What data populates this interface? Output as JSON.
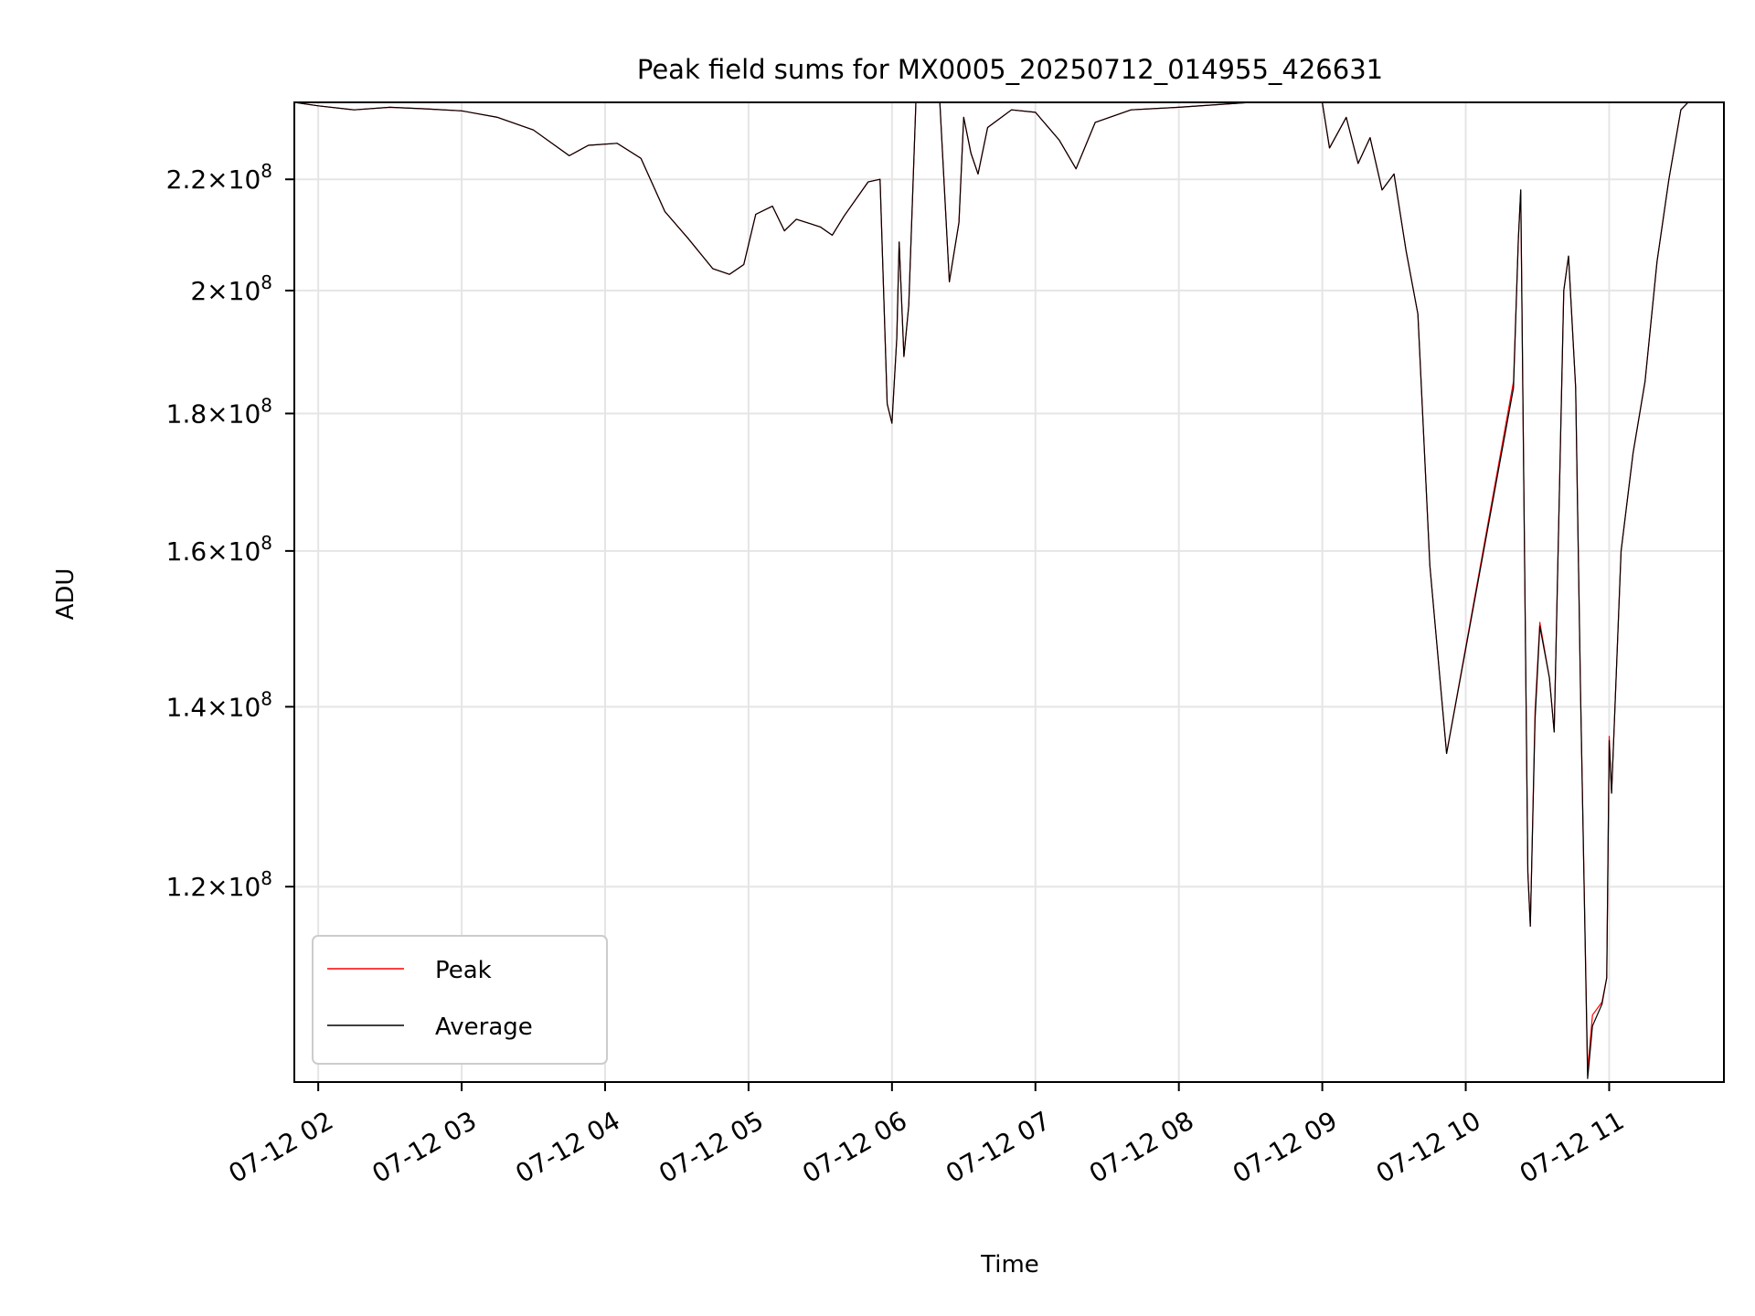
{
  "chart_data": {
    "type": "line",
    "title": "Peak field sums for MX0005_20250712_014955_426631",
    "xlabel": "Time",
    "ylabel": "ADU",
    "y_scale": "log",
    "ylim": [
      101500000,
      235000000
    ],
    "xlim": [
      "2025-07-12 01:50",
      "2025-07-12 11:48"
    ],
    "grid": true,
    "legend": "lower-left",
    "x_ticks": [
      {
        "t": "2025-07-12 02:00",
        "label": "07-12 02"
      },
      {
        "t": "2025-07-12 03:00",
        "label": "07-12 03"
      },
      {
        "t": "2025-07-12 04:00",
        "label": "07-12 04"
      },
      {
        "t": "2025-07-12 05:00",
        "label": "07-12 05"
      },
      {
        "t": "2025-07-12 06:00",
        "label": "07-12 06"
      },
      {
        "t": "2025-07-12 07:00",
        "label": "07-12 07"
      },
      {
        "t": "2025-07-12 08:00",
        "label": "07-12 08"
      },
      {
        "t": "2025-07-12 09:00",
        "label": "07-12 09"
      },
      {
        "t": "2025-07-12 10:00",
        "label": "07-12 10"
      },
      {
        "t": "2025-07-12 11:00",
        "label": "07-12 11"
      }
    ],
    "y_ticks": [
      {
        "v": 120000000,
        "mant": "1.2",
        "exp": "8"
      },
      {
        "v": 140000000,
        "mant": "1.4",
        "exp": "8"
      },
      {
        "v": 160000000,
        "mant": "1.6",
        "exp": "8"
      },
      {
        "v": 180000000,
        "mant": "1.8",
        "exp": "8"
      },
      {
        "v": 200000000,
        "mant": "2",
        "exp": "8"
      },
      {
        "v": 220000000,
        "mant": "2.2",
        "exp": "8"
      }
    ],
    "tick_times_label_sep": "×10",
    "series": [
      {
        "name": "Peak",
        "color": "#ff0000",
        "linewidth": 1.2,
        "points": [
          [
            "2025-07-12 01:50",
            235000000
          ],
          [
            "2025-07-12 02:00",
            234300000
          ],
          [
            "2025-07-12 02:15",
            233500000
          ],
          [
            "2025-07-12 02:30",
            234000000
          ],
          [
            "2025-07-12 02:45",
            233700000
          ],
          [
            "2025-07-12 03:00",
            233300000
          ],
          [
            "2025-07-12 03:15",
            232000000
          ],
          [
            "2025-07-12 03:30",
            229500000
          ],
          [
            "2025-07-12 03:45",
            224500000
          ],
          [
            "2025-07-12 03:53",
            226500000
          ],
          [
            "2025-07-12 04:05",
            226900000
          ],
          [
            "2025-07-12 04:15",
            224000000
          ],
          [
            "2025-07-12 04:25",
            214000000
          ],
          [
            "2025-07-12 04:35",
            209000000
          ],
          [
            "2025-07-12 04:45",
            203800000
          ],
          [
            "2025-07-12 04:52",
            202800000
          ],
          [
            "2025-07-12 04:58",
            204500000
          ],
          [
            "2025-07-12 05:03",
            213500000
          ],
          [
            "2025-07-12 05:10",
            215000000
          ],
          [
            "2025-07-12 05:15",
            210500000
          ],
          [
            "2025-07-12 05:20",
            212600000
          ],
          [
            "2025-07-12 05:30",
            211200000
          ],
          [
            "2025-07-12 05:35",
            209700000
          ],
          [
            "2025-07-12 05:40",
            213200000
          ],
          [
            "2025-07-12 05:50",
            219500000
          ],
          [
            "2025-07-12 05:55",
            220000000
          ],
          [
            "2025-07-12 05:58",
            181500000
          ],
          [
            "2025-07-12 06:00",
            178500000
          ],
          [
            "2025-07-12 06:02",
            192000000
          ],
          [
            "2025-07-12 06:03",
            208500000
          ],
          [
            "2025-07-12 06:05",
            189000000
          ],
          [
            "2025-07-12 06:07",
            197500000
          ],
          [
            "2025-07-12 06:10",
            235000000
          ],
          [
            "2025-07-12 06:20",
            235000000
          ],
          [
            "2025-07-12 06:24",
            201500000
          ],
          [
            "2025-07-12 06:28",
            212000000
          ],
          [
            "2025-07-12 06:30",
            232000000
          ],
          [
            "2025-07-12 06:33",
            225000000
          ],
          [
            "2025-07-12 06:36",
            221000000
          ],
          [
            "2025-07-12 06:40",
            230000000
          ],
          [
            "2025-07-12 06:50",
            233500000
          ],
          [
            "2025-07-12 07:00",
            233000000
          ],
          [
            "2025-07-12 07:10",
            227500000
          ],
          [
            "2025-07-12 07:17",
            222000000
          ],
          [
            "2025-07-12 07:25",
            231000000
          ],
          [
            "2025-07-12 07:40",
            233500000
          ],
          [
            "2025-07-12 08:00",
            234000000
          ],
          [
            "2025-07-12 08:30",
            235000000
          ],
          [
            "2025-07-12 09:00",
            235000000
          ],
          [
            "2025-07-12 09:03",
            226000000
          ],
          [
            "2025-07-12 09:10",
            232000000
          ],
          [
            "2025-07-12 09:15",
            223000000
          ],
          [
            "2025-07-12 09:20",
            228000000
          ],
          [
            "2025-07-12 09:25",
            218000000
          ],
          [
            "2025-07-12 09:30",
            221000000
          ],
          [
            "2025-07-12 09:35",
            207000000
          ],
          [
            "2025-07-12 09:40",
            196000000
          ],
          [
            "2025-07-12 09:45",
            158000000
          ],
          [
            "2025-07-12 09:52",
            134500000
          ],
          [
            "2025-07-12 10:20",
            185000000
          ],
          [
            "2025-07-12 10:22",
            209000000
          ],
          [
            "2025-07-12 10:23",
            218000000
          ],
          [
            "2025-07-12 10:26",
            121500000
          ],
          [
            "2025-07-12 10:27",
            116000000
          ],
          [
            "2025-07-12 10:29",
            139500000
          ],
          [
            "2025-07-12 10:31",
            150500000
          ],
          [
            "2025-07-12 10:35",
            143500000
          ],
          [
            "2025-07-12 10:37",
            137000000
          ],
          [
            "2025-07-12 10:41",
            200000000
          ],
          [
            "2025-07-12 10:43",
            206000000
          ],
          [
            "2025-07-12 10:46",
            184000000
          ],
          [
            "2025-07-12 10:48",
            142000000
          ],
          [
            "2025-07-12 10:51",
            102500000
          ],
          [
            "2025-07-12 10:53",
            107500000
          ],
          [
            "2025-07-12 10:57",
            108700000
          ],
          [
            "2025-07-12 10:59",
            111000000
          ],
          [
            "2025-07-12 11:00",
            136500000
          ],
          [
            "2025-07-12 11:01",
            130000000
          ],
          [
            "2025-07-12 11:05",
            160000000
          ],
          [
            "2025-07-12 11:10",
            174000000
          ],
          [
            "2025-07-12 11:15",
            185000000
          ],
          [
            "2025-07-12 11:20",
            205000000
          ],
          [
            "2025-07-12 11:25",
            220000000
          ],
          [
            "2025-07-12 11:30",
            233500000
          ],
          [
            "2025-07-12 11:33",
            235000000
          ]
        ]
      },
      {
        "name": "Average",
        "color": "#000000",
        "linewidth": 1.2,
        "points": [
          [
            "2025-07-12 01:50",
            235000000
          ],
          [
            "2025-07-12 02:00",
            234300000
          ],
          [
            "2025-07-12 02:15",
            233500000
          ],
          [
            "2025-07-12 02:30",
            234000000
          ],
          [
            "2025-07-12 02:45",
            233700000
          ],
          [
            "2025-07-12 03:00",
            233300000
          ],
          [
            "2025-07-12 03:15",
            232000000
          ],
          [
            "2025-07-12 03:30",
            229500000
          ],
          [
            "2025-07-12 03:45",
            224500000
          ],
          [
            "2025-07-12 03:53",
            226500000
          ],
          [
            "2025-07-12 04:05",
            226900000
          ],
          [
            "2025-07-12 04:15",
            224000000
          ],
          [
            "2025-07-12 04:25",
            214000000
          ],
          [
            "2025-07-12 04:35",
            209000000
          ],
          [
            "2025-07-12 04:45",
            203800000
          ],
          [
            "2025-07-12 04:52",
            202800000
          ],
          [
            "2025-07-12 04:58",
            204500000
          ],
          [
            "2025-07-12 05:03",
            213500000
          ],
          [
            "2025-07-12 05:10",
            215000000
          ],
          [
            "2025-07-12 05:15",
            210500000
          ],
          [
            "2025-07-12 05:20",
            212600000
          ],
          [
            "2025-07-12 05:30",
            211200000
          ],
          [
            "2025-07-12 05:35",
            209700000
          ],
          [
            "2025-07-12 05:40",
            213200000
          ],
          [
            "2025-07-12 05:50",
            219500000
          ],
          [
            "2025-07-12 05:55",
            220000000
          ],
          [
            "2025-07-12 05:58",
            181500000
          ],
          [
            "2025-07-12 06:00",
            178500000
          ],
          [
            "2025-07-12 06:02",
            192000000
          ],
          [
            "2025-07-12 06:03",
            208500000
          ],
          [
            "2025-07-12 06:05",
            189000000
          ],
          [
            "2025-07-12 06:07",
            197500000
          ],
          [
            "2025-07-12 06:10",
            235000000
          ],
          [
            "2025-07-12 06:20",
            235000000
          ],
          [
            "2025-07-12 06:24",
            201500000
          ],
          [
            "2025-07-12 06:28",
            212000000
          ],
          [
            "2025-07-12 06:30",
            232000000
          ],
          [
            "2025-07-12 06:33",
            225000000
          ],
          [
            "2025-07-12 06:36",
            221000000
          ],
          [
            "2025-07-12 06:40",
            230000000
          ],
          [
            "2025-07-12 06:50",
            233500000
          ],
          [
            "2025-07-12 07:00",
            233000000
          ],
          [
            "2025-07-12 07:10",
            227500000
          ],
          [
            "2025-07-12 07:17",
            222000000
          ],
          [
            "2025-07-12 07:25",
            231000000
          ],
          [
            "2025-07-12 07:40",
            233500000
          ],
          [
            "2025-07-12 08:00",
            234000000
          ],
          [
            "2025-07-12 08:30",
            235000000
          ],
          [
            "2025-07-12 09:00",
            235000000
          ],
          [
            "2025-07-12 09:03",
            226000000
          ],
          [
            "2025-07-12 09:10",
            232000000
          ],
          [
            "2025-07-12 09:15",
            223000000
          ],
          [
            "2025-07-12 09:20",
            228000000
          ],
          [
            "2025-07-12 09:25",
            218000000
          ],
          [
            "2025-07-12 09:30",
            221000000
          ],
          [
            "2025-07-12 09:35",
            207000000
          ],
          [
            "2025-07-12 09:40",
            196000000
          ],
          [
            "2025-07-12 09:45",
            158000000
          ],
          [
            "2025-07-12 09:52",
            134500000
          ],
          [
            "2025-07-12 10:20",
            184000000
          ],
          [
            "2025-07-12 10:22",
            209000000
          ],
          [
            "2025-07-12 10:23",
            218000000
          ],
          [
            "2025-07-12 10:26",
            121500000
          ],
          [
            "2025-07-12 10:27",
            116000000
          ],
          [
            "2025-07-12 10:29",
            138500000
          ],
          [
            "2025-07-12 10:31",
            150000000
          ],
          [
            "2025-07-12 10:35",
            143500000
          ],
          [
            "2025-07-12 10:37",
            137000000
          ],
          [
            "2025-07-12 10:41",
            200000000
          ],
          [
            "2025-07-12 10:43",
            206000000
          ],
          [
            "2025-07-12 10:46",
            184000000
          ],
          [
            "2025-07-12 10:48",
            142000000
          ],
          [
            "2025-07-12 10:51",
            101800000
          ],
          [
            "2025-07-12 10:53",
            106500000
          ],
          [
            "2025-07-12 10:57",
            108500000
          ],
          [
            "2025-07-12 10:59",
            111000000
          ],
          [
            "2025-07-12 11:00",
            136000000
          ],
          [
            "2025-07-12 11:01",
            130000000
          ],
          [
            "2025-07-12 11:05",
            160000000
          ],
          [
            "2025-07-12 11:10",
            174000000
          ],
          [
            "2025-07-12 11:15",
            185000000
          ],
          [
            "2025-07-12 11:20",
            205000000
          ],
          [
            "2025-07-12 11:25",
            220000000
          ],
          [
            "2025-07-12 11:30",
            233500000
          ],
          [
            "2025-07-12 11:33",
            235000000
          ]
        ]
      }
    ]
  }
}
